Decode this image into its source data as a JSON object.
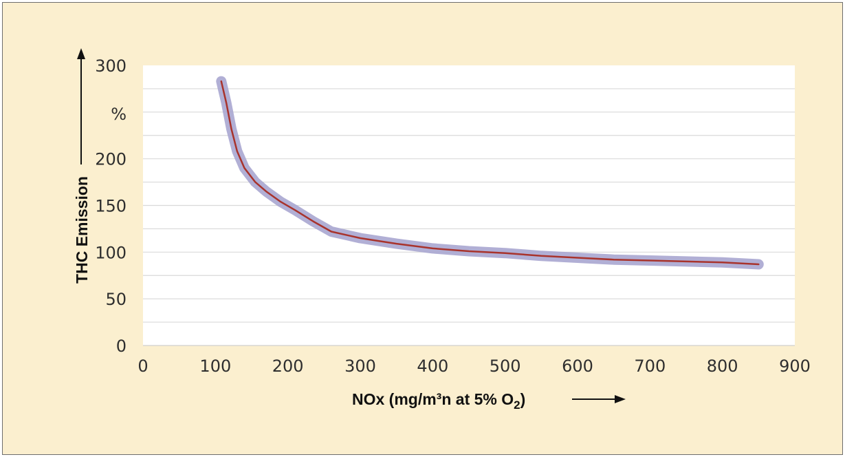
{
  "chart_data": {
    "type": "line",
    "xlabel": "NOx (mg/m³n at 5% O",
    "xlabel_subscript": "2",
    "xlabel_close": ")",
    "ylabel": "THC Emission",
    "y_unit_label": "%",
    "xlim": [
      0,
      900
    ],
    "ylim": [
      0,
      300
    ],
    "x_ticks": [
      "0",
      "100",
      "200",
      "300",
      "400",
      "500",
      "600",
      "700",
      "800",
      "900"
    ],
    "y_ticks": [
      "0",
      "50",
      "100",
      "150",
      "200",
      "300"
    ],
    "grid": true,
    "colors": {
      "line": "#a8332c",
      "halo": "#a9a6d0",
      "background": "#fbefcf",
      "plot_area": "#ffffff"
    },
    "series": [
      {
        "x": [
          108,
          115,
          122,
          130,
          140,
          155,
          170,
          190,
          210,
          235,
          260,
          300,
          350,
          400,
          450,
          500,
          550,
          600,
          650,
          700,
          750,
          800,
          850
        ],
        "y": [
          283,
          260,
          232,
          208,
          190,
          175,
          165,
          154,
          145,
          133,
          122,
          115,
          109,
          104,
          101,
          99,
          96,
          94,
          92,
          91,
          90,
          89,
          87
        ]
      }
    ]
  }
}
